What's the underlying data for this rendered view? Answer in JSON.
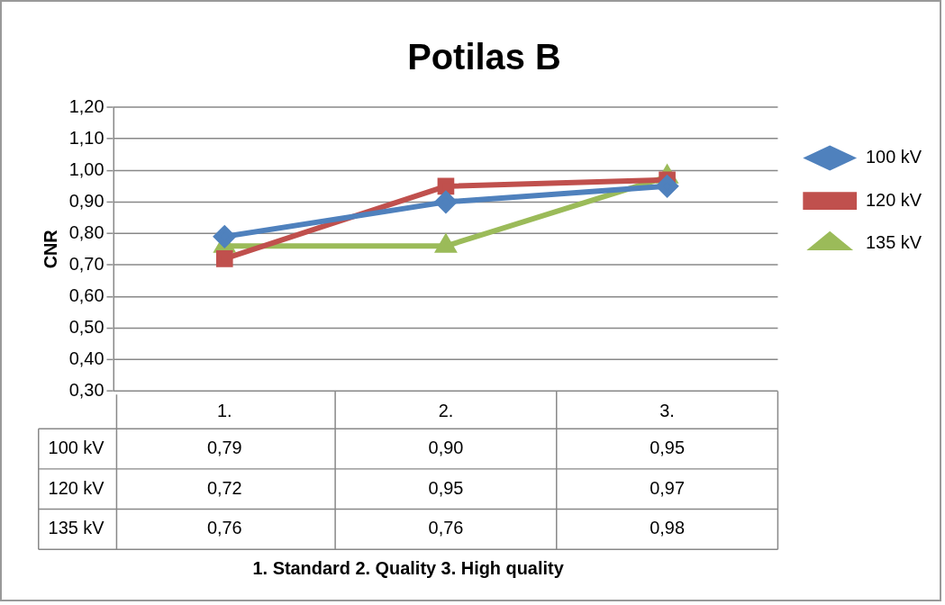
{
  "chart_data": {
    "type": "line",
    "title": "Potilas B",
    "ylabel": "CNR",
    "annotations": [
      "1. Standard 2. Quality 3. High quality"
    ],
    "categories": [
      "1.",
      "2.",
      "3."
    ],
    "series": [
      {
        "name": "100 kV",
        "color": "#4f81bd",
        "marker": "diamond",
        "values": [
          0.79,
          0.9,
          0.95
        ],
        "value_labels": [
          "0,79",
          "0,90",
          "0,95"
        ]
      },
      {
        "name": "120 kV",
        "color": "#c0504d",
        "marker": "square",
        "values": [
          0.72,
          0.95,
          0.97
        ],
        "value_labels": [
          "0,72",
          "0,95",
          "0,97"
        ]
      },
      {
        "name": "135 kV",
        "color": "#9bbb59",
        "marker": "triangle",
        "values": [
          0.76,
          0.76,
          0.98
        ],
        "value_labels": [
          "0,76",
          "0,76",
          "0,98"
        ]
      }
    ],
    "ylim": [
      0.3,
      1.2
    ],
    "yticks": [
      {
        "value": 0.3,
        "label": "0,30"
      },
      {
        "value": 0.4,
        "label": "0,40"
      },
      {
        "value": 0.5,
        "label": "0,50"
      },
      {
        "value": 0.6,
        "label": "0,60"
      },
      {
        "value": 0.7,
        "label": "0,70"
      },
      {
        "value": 0.8,
        "label": "0,80"
      },
      {
        "value": 0.9,
        "label": "0,90"
      },
      {
        "value": 1.0,
        "label": "1,00"
      },
      {
        "value": 1.1,
        "label": "1,10"
      },
      {
        "value": 1.2,
        "label": "1,20"
      }
    ],
    "grid": "y",
    "legend": "right"
  }
}
